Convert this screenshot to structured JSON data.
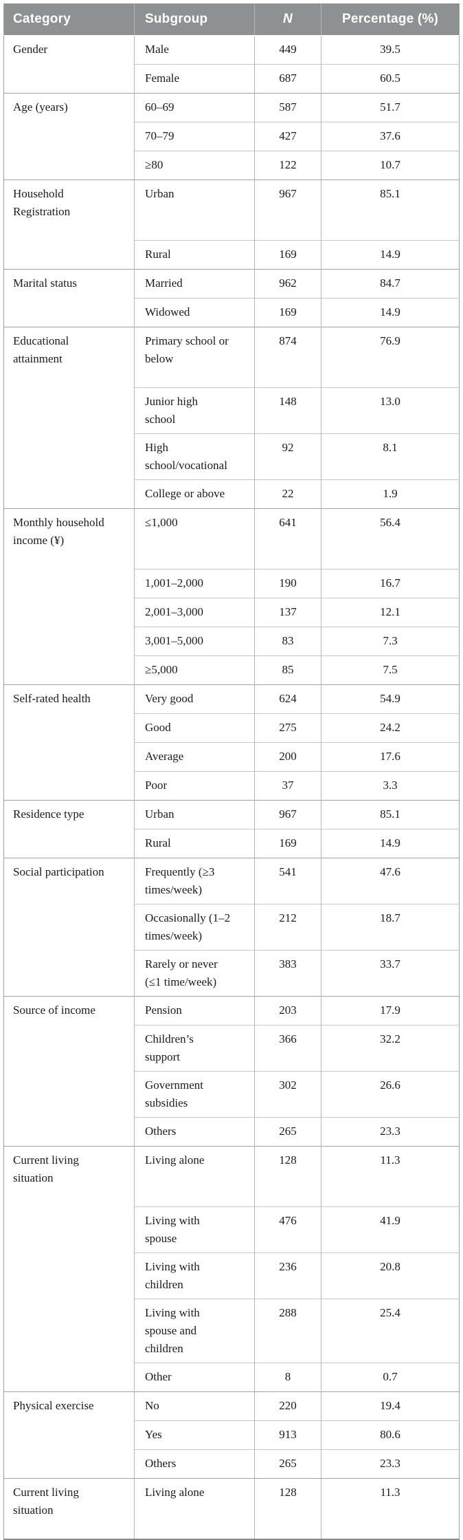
{
  "table": {
    "columns": {
      "category": "Category",
      "subgroup": "Subgroup",
      "n": "N",
      "percentage": "Percentage (%)"
    },
    "groups": [
      {
        "category": "Gender",
        "rows": [
          {
            "subgroup": "Male",
            "n": "449",
            "percentage": "39.5"
          },
          {
            "subgroup": "Female",
            "n": "687",
            "percentage": "60.5"
          }
        ]
      },
      {
        "category": "Age (years)",
        "rows": [
          {
            "subgroup": "60–69",
            "n": "587",
            "percentage": "51.7"
          },
          {
            "subgroup": "70–79",
            "n": "427",
            "percentage": "37.6"
          },
          {
            "subgroup": "≥80",
            "n": "122",
            "percentage": "10.7"
          }
        ]
      },
      {
        "category": "Household Registration",
        "rows": [
          {
            "subgroup": "Urban",
            "n": "967",
            "percentage": "85.1"
          },
          {
            "subgroup": "Rural",
            "n": "169",
            "percentage": "14.9"
          }
        ]
      },
      {
        "category": "Marital status",
        "rows": [
          {
            "subgroup": "Married",
            "n": "962",
            "percentage": "84.7"
          },
          {
            "subgroup": "Widowed",
            "n": "169",
            "percentage": "14.9"
          }
        ]
      },
      {
        "category": "Educational attainment",
        "rows": [
          {
            "subgroup": "Primary school or below",
            "n": "874",
            "percentage": "76.9"
          },
          {
            "subgroup": "Junior high school",
            "n": "148",
            "percentage": "13.0"
          },
          {
            "subgroup": "High school/vocational",
            "n": "92",
            "percentage": "8.1"
          },
          {
            "subgroup": "College or above",
            "n": "22",
            "percentage": "1.9"
          }
        ]
      },
      {
        "category": "Monthly household income (¥)",
        "rows": [
          {
            "subgroup": "≤1,000",
            "n": "641",
            "percentage": "56.4"
          },
          {
            "subgroup": "1,001–2,000",
            "n": "190",
            "percentage": "16.7"
          },
          {
            "subgroup": "2,001–3,000",
            "n": "137",
            "percentage": "12.1"
          },
          {
            "subgroup": "3,001–5,000",
            "n": "83",
            "percentage": "7.3"
          },
          {
            "subgroup": "≥5,000",
            "n": "85",
            "percentage": "7.5"
          }
        ]
      },
      {
        "category": "Self-rated health",
        "rows": [
          {
            "subgroup": "Very good",
            "n": "624",
            "percentage": "54.9"
          },
          {
            "subgroup": "Good",
            "n": "275",
            "percentage": "24.2"
          },
          {
            "subgroup": "Average",
            "n": "200",
            "percentage": "17.6"
          },
          {
            "subgroup": "Poor",
            "n": "37",
            "percentage": "3.3"
          }
        ]
      },
      {
        "category": "Residence type",
        "rows": [
          {
            "subgroup": "Urban",
            "n": "967",
            "percentage": "85.1"
          },
          {
            "subgroup": "Rural",
            "n": "169",
            "percentage": "14.9"
          }
        ]
      },
      {
        "category": "Social participation",
        "rows": [
          {
            "subgroup": "Frequently (≥3 times/week)",
            "n": "541",
            "percentage": "47.6"
          },
          {
            "subgroup": "Occasionally (1–2 times/week)",
            "n": "212",
            "percentage": "18.7"
          },
          {
            "subgroup": "Rarely or never (≤1 time/week)",
            "n": "383",
            "percentage": "33.7"
          }
        ]
      },
      {
        "category": "Source of income",
        "rows": [
          {
            "subgroup": "Pension",
            "n": "203",
            "percentage": "17.9"
          },
          {
            "subgroup": "Children’s support",
            "n": "366",
            "percentage": "32.2"
          },
          {
            "subgroup": "Government subsidies",
            "n": "302",
            "percentage": "26.6"
          },
          {
            "subgroup": "Others",
            "n": "265",
            "percentage": "23.3"
          }
        ]
      },
      {
        "category": "Current living situation",
        "rows": [
          {
            "subgroup": "Living alone",
            "n": "128",
            "percentage": "11.3"
          },
          {
            "subgroup": "Living with spouse",
            "n": "476",
            "percentage": "41.9"
          },
          {
            "subgroup": "Living with children",
            "n": "236",
            "percentage": "20.8"
          },
          {
            "subgroup": "Living with spouse and children",
            "n": "288",
            "percentage": "25.4"
          },
          {
            "subgroup": "Other",
            "n": "8",
            "percentage": "0.7"
          }
        ]
      },
      {
        "category": "Physical exercise",
        "rows": [
          {
            "subgroup": "No",
            "n": "220",
            "percentage": "19.4"
          },
          {
            "subgroup": "Yes",
            "n": "913",
            "percentage": "80.6"
          },
          {
            "subgroup": "Others",
            "n": "265",
            "percentage": "23.3"
          }
        ]
      },
      {
        "category": "Current living situation",
        "rows": [
          {
            "subgroup": "Living alone",
            "n": "128",
            "percentage": "11.3"
          }
        ]
      }
    ],
    "colors": {
      "header_bg": "#8d9192",
      "header_text": "#ffffff",
      "body_text": "#1b1b1b",
      "border_group": "#a0a0a0",
      "border_row": "#c6c6c6",
      "border_column": "#b4b4b4"
    }
  }
}
